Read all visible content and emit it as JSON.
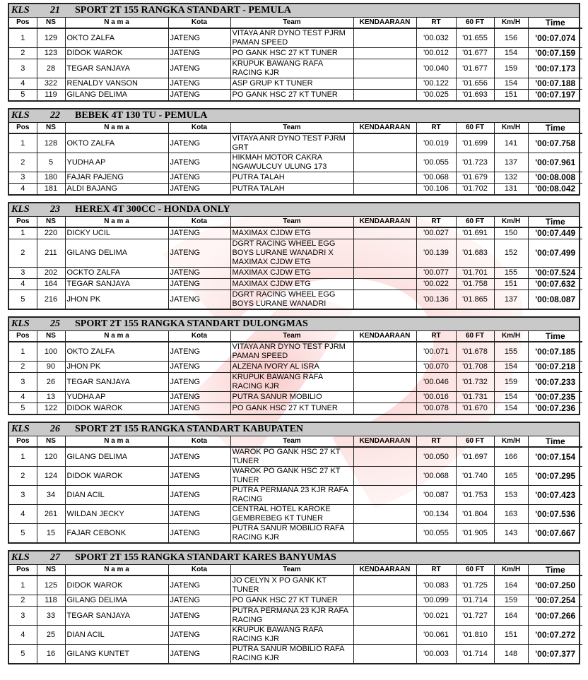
{
  "headers": [
    "Pos",
    "NS",
    "N a m a",
    "Kota",
    "Team",
    "KENDAARAAN",
    "RT",
    "60 FT",
    "Km/H",
    "Time"
  ],
  "classes": [
    {
      "kls": "KLS",
      "num": "21",
      "name": "SPORT 2T 155 RANGKA STANDART - PEMULA",
      "rows": [
        [
          "1",
          "129",
          "OKTO ZALFA",
          "JATENG",
          "VITAYA ANR DYNO TEST PJRM PAMAN SPEED",
          "",
          "'00.032",
          "'01.655",
          "156",
          "'00:07.074"
        ],
        [
          "2",
          "123",
          "DIDOK WAROK",
          "JATENG",
          "PO GANK HSC 27 KT TUNER",
          "",
          "'00.012",
          "'01.677",
          "154",
          "'00:07.159"
        ],
        [
          "3",
          "28",
          "TEGAR SANJAYA",
          "JATENG",
          "KRUPUK BAWANG RAFA RACING KJR",
          "",
          "'00.040",
          "'01.677",
          "159",
          "'00:07.173"
        ],
        [
          "4",
          "322",
          "RENALDY VANSON",
          "JATENG",
          "ASP GRUP KT TUNER",
          "",
          "'00.122",
          "'01.656",
          "154",
          "'00:07.188"
        ],
        [
          "5",
          "119",
          "GILANG DELIMA",
          "JATENG",
          "PO GANK HSC 27 KT TUNER",
          "",
          "'00.025",
          "'01.693",
          "151",
          "'00:07.197"
        ]
      ]
    },
    {
      "kls": "KLS",
      "num": "22",
      "name": "BEBEK 4T 130 TU - PEMULA",
      "rows": [
        [
          "1",
          "128",
          "OKTO ZALFA",
          "JATENG",
          "VITAYA ANR DYNO TEST PJRM GRT",
          "",
          "'00.019",
          "'01.699",
          "141",
          "'00:07.758"
        ],
        [
          "2",
          "5",
          "YUDHA AP",
          "JATENG",
          "HIKMAH MOTOR CAKRA NGAWULCUY ULUNG 173",
          "",
          "'00.055",
          "'01.723",
          "137",
          "'00:07.961"
        ],
        [
          "3",
          "180",
          "FAJAR PAJENG",
          "JATENG",
          "PUTRA TALAH",
          "",
          "'00.068",
          "'01.679",
          "132",
          "'00:08.008"
        ],
        [
          "4",
          "181",
          "ALDI BAJANG",
          "JATENG",
          "PUTRA TALAH",
          "",
          "'00.106",
          "'01.702",
          "131",
          "'00:08.042"
        ]
      ]
    },
    {
      "kls": "KLS",
      "num": "23",
      "name": "HEREX 4T 300CC - HONDA ONLY",
      "rows": [
        [
          "1",
          "220",
          "DICKY UCIL",
          "JATENG",
          "MAXIMAX CJDW ETG",
          "",
          "'00.027",
          "'01.691",
          "150",
          "'00:07.449"
        ],
        [
          "2",
          "211",
          "GILANG DELIMA",
          "JATENG",
          "DGRT RACING WHEEL EGG BOYS LURANE WANADRI X MAXIMAX CJDW ETG",
          "",
          "'00.139",
          "'01.683",
          "152",
          "'00:07.499"
        ],
        [
          "3",
          "202",
          "OCKTO ZALFA",
          "JATENG",
          "MAXIMAX CJDW ETG",
          "",
          "'00.077",
          "'01.701",
          "155",
          "'00:07.524"
        ],
        [
          "4",
          "164",
          "TEGAR SANJAYA",
          "JATENG",
          "MAXIMAX CJDW ETG",
          "",
          "'00.022",
          "'01.758",
          "151",
          "'00:07.632"
        ],
        [
          "5",
          "216",
          "JHON PK",
          "JATENG",
          "DGRT RACING WHEEL EGG BOYS LURANE WANADRI",
          "",
          "'00.136",
          "'01.865",
          "137",
          "'00:08.087"
        ]
      ]
    },
    {
      "kls": "KLS",
      "num": "25",
      "name": "SPORT 2T 155 RANGKA STANDART DULONGMAS",
      "rows": [
        [
          "1",
          "100",
          "OKTO ZALFA",
          "JATENG",
          "VITAYA ANR DYNO TEST PJRM PAMAN SPEED",
          "",
          "'00.071",
          "'01.678",
          "155",
          "'00:07.185"
        ],
        [
          "2",
          "90",
          "JHON PK",
          "JATENG",
          "ALZENA IVORY AL ISRA",
          "",
          "'00.070",
          "'01.708",
          "154",
          "'00:07.218"
        ],
        [
          "3",
          "26",
          "TEGAR SANJAYA",
          "JATENG",
          "KRUPUK BAWANG RAFA RACING KJR",
          "",
          "'00.046",
          "'01.732",
          "159",
          "'00:07.233"
        ],
        [
          "4",
          "13",
          "YUDHA AP",
          "JATENG",
          "PUTRA SANUR MOBILIO",
          "",
          "'00.016",
          "'01.731",
          "154",
          "'00:07.235"
        ],
        [
          "5",
          "122",
          "DIDOK WAROK",
          "JATENG",
          "PO GANK HSC 27 KT TUNER",
          "",
          "'00.078",
          "'01.670",
          "154",
          "'00:07.236"
        ]
      ]
    },
    {
      "kls": "KLS",
      "num": "26",
      "name": "SPORT 2T 155 RANGKA STANDART KABUPATEN",
      "rows": [
        [
          "1",
          "120",
          "GILANG DELIMA",
          "JATENG",
          "WAROK PO GANK HSC 27 KT TUNER",
          "",
          "'00.050",
          "'01.697",
          "166",
          "'00:07.154"
        ],
        [
          "2",
          "124",
          "DIDOK WAROK",
          "JATENG",
          "WAROK PO GANK HSC 27 KT TUNER",
          "",
          "'00.068",
          "'01.740",
          "165",
          "'00:07.295"
        ],
        [
          "3",
          "34",
          "DIAN ACIL",
          "JATENG",
          "PUTRA PERMANA 23 KJR RAFA RACING",
          "",
          "'00.087",
          "'01.753",
          "153",
          "'00:07.423"
        ],
        [
          "4",
          "261",
          "WILDAN JECKY",
          "JATENG",
          "CENTRAL HOTEL KAROKE GEMBREBEG KT TUNER",
          "",
          "'00.134",
          "'01.804",
          "163",
          "'00:07.536"
        ],
        [
          "5",
          "15",
          "FAJAR CEBONK",
          "JATENG",
          "PUTRA SANUR MOBILIO RAFA RACING KJR",
          "",
          "'00.055",
          "'01.905",
          "143",
          "'00:07.667"
        ]
      ]
    },
    {
      "kls": "KLS",
      "num": "27",
      "name": "SPORT 2T 155 RANGKA STANDART KARES BANYUMAS",
      "rows": [
        [
          "1",
          "125",
          "DIDOK WAROK",
          "JATENG",
          "JO CELYN X PO GANK KT TUNER",
          "",
          "'00.083",
          "'01.725",
          "164",
          "'00:07.250"
        ],
        [
          "2",
          "118",
          "GILANG DELIMA",
          "JATENG",
          "PO GANK HSC 27 KT TUNER",
          "",
          "'00.099",
          "'01.714",
          "159",
          "'00:07.254"
        ],
        [
          "3",
          "33",
          "TEGAR SANJAYA",
          "JATENG",
          "PUTRA PERMANA 23 KJR RAFA RACING",
          "",
          "'00.021",
          "'01.727",
          "164",
          "'00:07.266"
        ],
        [
          "4",
          "25",
          "DIAN ACIL",
          "JATENG",
          "KRUPUK BAWANG RAFA RACING KJR",
          "",
          "'00.061",
          "'01.810",
          "151",
          "'00:07.272"
        ],
        [
          "5",
          "16",
          "GILANG KUNTET",
          "JATENG",
          "PUTRA SANUR MOBILIO RAFA RACING KJR",
          "",
          "'00.003",
          "'01.714",
          "148",
          "'00:07.377"
        ]
      ]
    }
  ],
  "watermark_color": "#e8322a"
}
